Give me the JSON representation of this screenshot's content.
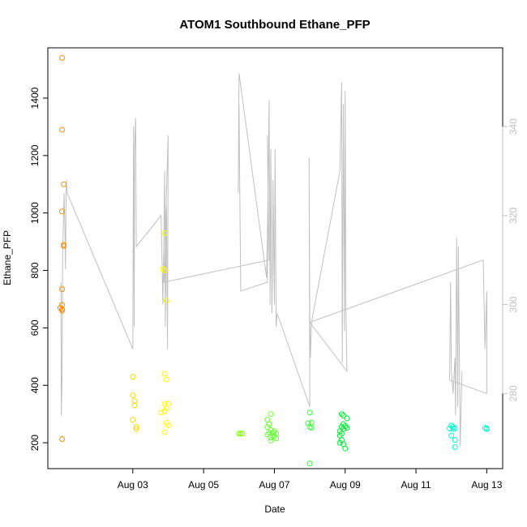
{
  "chart_data": {
    "type": "scatter",
    "title": "ATOM1 Southbound Ethane_PFP",
    "xlabel": "Date",
    "ylabel": "Ethane_PFP",
    "x_ticks": [
      "Aug 03",
      "Aug 05",
      "Aug 07",
      "Aug 09",
      "Aug 11",
      "Aug 13"
    ],
    "y_ticks": [
      200,
      400,
      600,
      800,
      1000,
      1200,
      1400
    ],
    "y2_ticks": [
      280,
      300,
      320,
      340
    ],
    "xlim": [
      0.6,
      13.45
    ],
    "ylim": [
      110,
      1575
    ],
    "y2lim": [
      263.1,
      357.7
    ],
    "color_scale": [
      "#ff8c00",
      "#ffd700",
      "#ffff00",
      "#adff2f",
      "#7fff00",
      "#00ff00",
      "#00ff7f",
      "#00ffff"
    ],
    "series": [
      {
        "color": "#ff8c00",
        "points": [
          [
            1.0,
            1540
          ],
          [
            1.0,
            1290
          ],
          [
            1.05,
            1100
          ],
          [
            1.0,
            1005
          ],
          [
            1.05,
            890
          ],
          [
            1.05,
            885
          ],
          [
            1.0,
            735
          ],
          [
            1.0,
            680
          ],
          [
            0.95,
            670
          ],
          [
            1.0,
            665
          ],
          [
            1.0,
            660
          ],
          [
            1.0,
            213
          ]
        ]
      },
      {
        "color": "#ffd700",
        "points": [
          [
            3.0,
            430
          ],
          [
            3.0,
            365
          ],
          [
            3.05,
            345
          ],
          [
            3.05,
            330
          ],
          [
            3.0,
            280
          ],
          [
            3.1,
            255
          ],
          [
            3.1,
            248
          ]
        ]
      },
      {
        "color": "#ffff00",
        "points": [
          [
            3.9,
            930
          ],
          [
            3.85,
            805
          ],
          [
            3.9,
            800
          ],
          [
            3.95,
            695
          ],
          [
            3.9,
            440
          ],
          [
            3.95,
            420
          ],
          [
            3.9,
            335
          ],
          [
            4.0,
            335
          ],
          [
            3.95,
            320
          ],
          [
            3.9,
            310
          ],
          [
            3.8,
            305
          ],
          [
            3.95,
            270
          ],
          [
            4.0,
            260
          ],
          [
            3.9,
            237
          ]
        ]
      },
      {
        "color": "#7fff00",
        "points": [
          [
            6.0,
            232
          ],
          [
            6.05,
            232
          ],
          [
            6.1,
            232
          ]
        ]
      },
      {
        "color": "#66ff33",
        "points": [
          [
            6.8,
            280
          ],
          [
            6.9,
            300
          ],
          [
            6.85,
            265
          ],
          [
            6.8,
            255
          ],
          [
            6.9,
            245
          ],
          [
            7.0,
            240
          ],
          [
            6.85,
            235
          ],
          [
            6.95,
            235
          ],
          [
            7.05,
            232
          ],
          [
            6.8,
            228
          ],
          [
            6.95,
            225
          ],
          [
            7.0,
            222
          ],
          [
            6.9,
            218
          ],
          [
            7.05,
            215
          ],
          [
            6.9,
            208
          ]
        ]
      },
      {
        "color": "#33ff33",
        "points": [
          [
            8.0,
            305
          ],
          [
            8.05,
            270
          ],
          [
            7.95,
            268
          ],
          [
            8.0,
            255
          ],
          [
            8.05,
            252
          ],
          [
            8.0,
            128
          ]
        ]
      },
      {
        "color": "#00ee33",
        "points": [
          [
            8.9,
            300
          ],
          [
            8.95,
            295
          ],
          [
            9.05,
            285
          ],
          [
            8.95,
            265
          ],
          [
            9.0,
            258
          ],
          [
            8.9,
            255
          ],
          [
            9.05,
            252
          ],
          [
            8.95,
            248
          ],
          [
            8.85,
            240
          ],
          [
            8.9,
            232
          ],
          [
            8.85,
            225
          ],
          [
            8.9,
            210
          ],
          [
            8.85,
            200
          ],
          [
            8.95,
            195
          ],
          [
            9.0,
            180
          ]
        ]
      },
      {
        "color": "#00ffcc",
        "points": [
          [
            12.0,
            260
          ],
          [
            12.05,
            255
          ],
          [
            11.95,
            250
          ],
          [
            12.1,
            250
          ],
          [
            12.05,
            248
          ],
          [
            12.0,
            225
          ],
          [
            12.1,
            210
          ],
          [
            12.1,
            185
          ],
          [
            12.95,
            252
          ],
          [
            13.0,
            250
          ],
          [
            13.0,
            248
          ]
        ]
      }
    ],
    "right_axis_line": {
      "color": "#c0c0c0",
      "points": [
        [
          0.97,
          305
        ],
        [
          0.98,
          275
        ],
        [
          1.0,
          283
        ],
        [
          1.02,
          312
        ],
        [
          1.06,
          325
        ],
        [
          1.08,
          318
        ],
        [
          1.1,
          308
        ],
        [
          1.12,
          328
        ],
        [
          1.15,
          325
        ],
        [
          3.0,
          290
        ],
        [
          3.02,
          340
        ],
        [
          3.04,
          295
        ],
        [
          3.05,
          335
        ],
        [
          3.08,
          342
        ],
        [
          3.1,
          313
        ],
        [
          3.8,
          320
        ],
        [
          3.85,
          300
        ],
        [
          3.9,
          330
        ],
        [
          3.92,
          295
        ],
        [
          3.95,
          322
        ],
        [
          3.98,
          290
        ],
        [
          4.0,
          338
        ],
        [
          3.88,
          305
        ],
        [
          6.85,
          310
        ],
        [
          6.8,
          338
        ],
        [
          6.82,
          325
        ],
        [
          6.78,
          306
        ],
        [
          6.0,
          352
        ],
        [
          5.98,
          325
        ],
        [
          6.0,
          345
        ],
        [
          6.05,
          303
        ],
        [
          6.8,
          305
        ],
        [
          6.85,
          346
        ],
        [
          6.88,
          300
        ],
        [
          6.9,
          335
        ],
        [
          6.93,
          298
        ],
        [
          6.95,
          310
        ],
        [
          6.96,
          328
        ],
        [
          7.0,
          300
        ],
        [
          7.02,
          335
        ],
        [
          7.05,
          295
        ],
        [
          7.08,
          298
        ],
        [
          8.0,
          277
        ],
        [
          7.98,
          333
        ],
        [
          8.0,
          297
        ],
        [
          8.02,
          288
        ],
        [
          8.05,
          296
        ],
        [
          8.85,
          330
        ],
        [
          8.9,
          350
        ],
        [
          8.92,
          287
        ],
        [
          8.95,
          345
        ],
        [
          8.98,
          294
        ],
        [
          9.0,
          348
        ],
        [
          9.02,
          300
        ],
        [
          9.05,
          285
        ],
        [
          8.0,
          296
        ],
        [
          12.9,
          310
        ],
        [
          12.95,
          290
        ],
        [
          13.0,
          303
        ],
        [
          13.0,
          280
        ],
        [
          11.95,
          283
        ],
        [
          11.98,
          305
        ],
        [
          12.0,
          285
        ],
        [
          12.05,
          280
        ],
        [
          12.1,
          288
        ],
        [
          12.12,
          275
        ],
        [
          12.15,
          315
        ],
        [
          12.18,
          277
        ],
        [
          12.2,
          313
        ],
        [
          12.25,
          268
        ],
        [
          12.3,
          285
        ]
      ]
    }
  }
}
